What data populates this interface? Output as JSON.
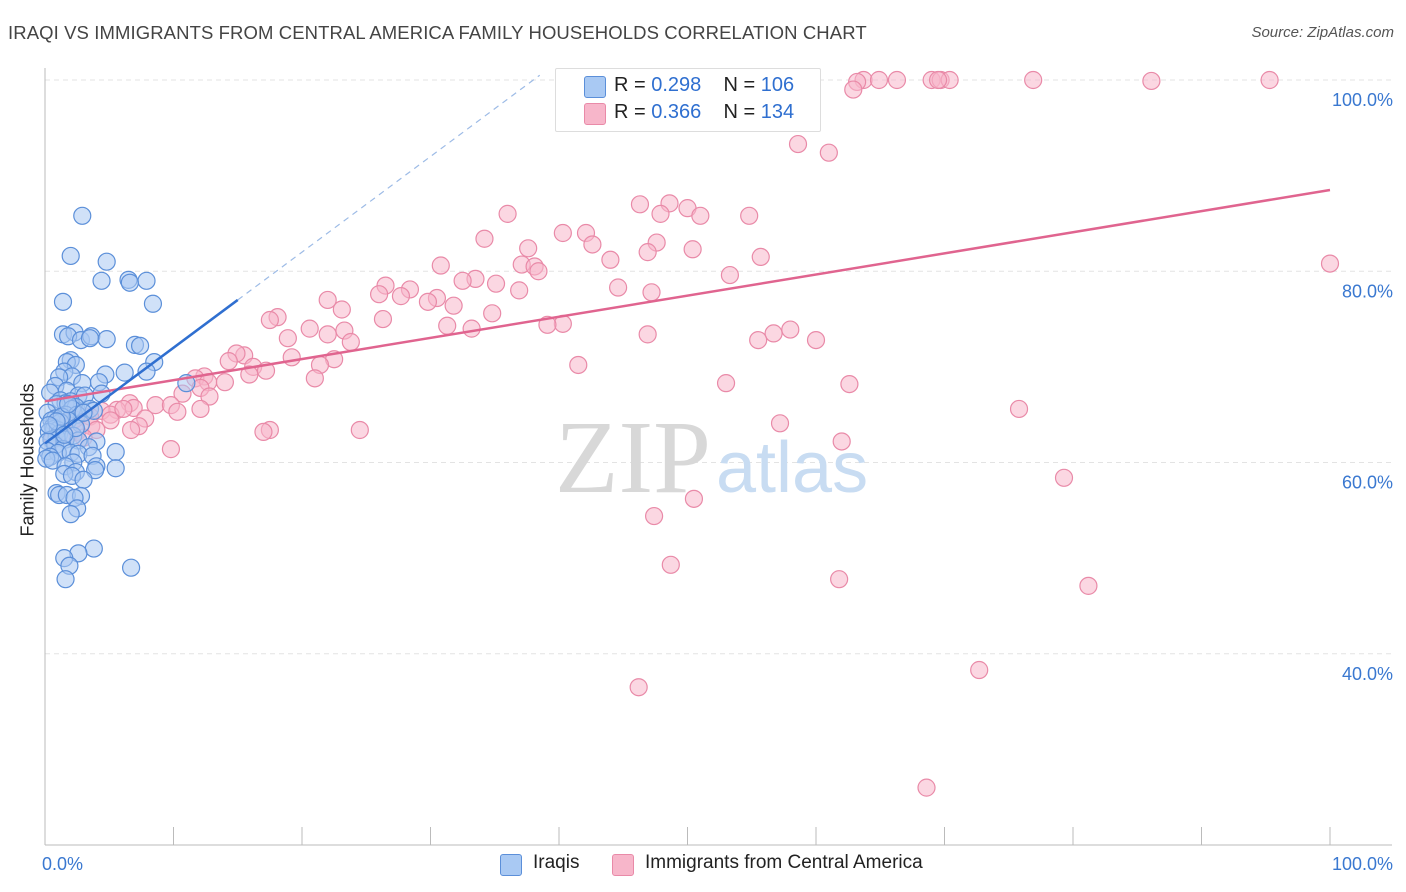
{
  "title": "IRAQI VS IMMIGRANTS FROM CENTRAL AMERICA FAMILY HOUSEHOLDS CORRELATION CHART",
  "source": "Source: ZipAtlas.com",
  "watermark": {
    "zip": "ZIP",
    "atlas": "atlas"
  },
  "legend": {
    "rows": [
      {
        "r_label": "R = ",
        "r_value": "0.298",
        "n_label": "N = ",
        "n_value": "106"
      },
      {
        "r_label": "R = ",
        "r_value": "0.366",
        "n_label": "N = ",
        "n_value": "134"
      }
    ]
  },
  "colors": {
    "iraqis_fill": "#a9c9f3",
    "iraqis_stroke": "#5b8fd9",
    "iraqis_line": "#2f6fd0",
    "central_fill": "#f7b6ca",
    "central_stroke": "#e98aa8",
    "central_line": "#e0648f",
    "tick_label": "#3a78d0",
    "grid": "#e3e3e3"
  },
  "chart_data": {
    "type": "scatter",
    "title": "IRAQI VS IMMIGRANTS FROM CENTRAL AMERICA FAMILY HOUSEHOLDS CORRELATION CHART",
    "xlabel": "",
    "ylabel": "Family Households",
    "xlim": [
      0,
      100
    ],
    "ylim": [
      20,
      102
    ],
    "x_tick_labels": [
      "0.0%",
      "100.0%"
    ],
    "y_ticks": [
      40,
      60,
      80,
      100
    ],
    "y_tick_labels": [
      "40.0%",
      "60.0%",
      "80.0%",
      "100.0%"
    ],
    "grid": true,
    "legend_position": "top-center",
    "series": [
      {
        "name": "Iraqis",
        "r": 0.298,
        "n": 106,
        "trend": {
          "x": [
            0,
            15
          ],
          "y": [
            62.0,
            77.0
          ]
        },
        "trend_extension": {
          "x": [
            15,
            38.5
          ],
          "y": [
            77.0,
            100.5
          ]
        },
        "points": [
          [
            2.9,
            85.8
          ],
          [
            2.0,
            81.6
          ],
          [
            4.8,
            81.0
          ],
          [
            4.4,
            79.0
          ],
          [
            6.5,
            79.1
          ],
          [
            7.9,
            79.0
          ],
          [
            6.6,
            78.8
          ],
          [
            1.4,
            76.8
          ],
          [
            8.4,
            76.6
          ],
          [
            1.4,
            73.4
          ],
          [
            2.3,
            73.6
          ],
          [
            1.8,
            73.2
          ],
          [
            2.8,
            72.8
          ],
          [
            3.6,
            73.2
          ],
          [
            3.5,
            73.0
          ],
          [
            4.8,
            72.9
          ],
          [
            7.0,
            72.3
          ],
          [
            7.4,
            72.2
          ],
          [
            8.5,
            70.5
          ],
          [
            2.0,
            70.7
          ],
          [
            1.7,
            70.5
          ],
          [
            2.4,
            70.2
          ],
          [
            4.7,
            69.2
          ],
          [
            6.2,
            69.4
          ],
          [
            7.9,
            69.5
          ],
          [
            1.5,
            69.5
          ],
          [
            2.1,
            69.0
          ],
          [
            1.1,
            68.9
          ],
          [
            2.9,
            68.3
          ],
          [
            11.0,
            68.3
          ],
          [
            4.2,
            68.4
          ],
          [
            0.8,
            68.0
          ],
          [
            1.7,
            67.5
          ],
          [
            0.4,
            67.3
          ],
          [
            2.6,
            67.0
          ],
          [
            3.1,
            67.0
          ],
          [
            4.4,
            67.2
          ],
          [
            1.2,
            66.5
          ],
          [
            2.0,
            66.4
          ],
          [
            1.6,
            66.2
          ],
          [
            0.9,
            66.1
          ],
          [
            2.4,
            65.8
          ],
          [
            2.1,
            65.6
          ],
          [
            3.5,
            65.6
          ],
          [
            3.8,
            65.4
          ],
          [
            0.2,
            65.2
          ],
          [
            1.6,
            65.0
          ],
          [
            2.5,
            65.0
          ],
          [
            0.8,
            64.6
          ],
          [
            1.8,
            64.4
          ],
          [
            0.5,
            64.4
          ],
          [
            1.2,
            64.2
          ],
          [
            2.8,
            64.0
          ],
          [
            0.6,
            63.7
          ],
          [
            0.7,
            63.5
          ],
          [
            1.0,
            63.4
          ],
          [
            0.3,
            63.2
          ],
          [
            1.1,
            63.0
          ],
          [
            2.2,
            62.8
          ],
          [
            0.9,
            62.6
          ],
          [
            0.5,
            62.4
          ],
          [
            1.6,
            62.4
          ],
          [
            2.6,
            62.3
          ],
          [
            0.2,
            62.2
          ],
          [
            4.0,
            62.2
          ],
          [
            0.8,
            61.8
          ],
          [
            3.4,
            61.6
          ],
          [
            1.4,
            61.4
          ],
          [
            0.2,
            61.2
          ],
          [
            1.0,
            61.0
          ],
          [
            2.0,
            61.0
          ],
          [
            2.6,
            60.9
          ],
          [
            5.5,
            61.1
          ],
          [
            3.7,
            60.7
          ],
          [
            0.4,
            60.6
          ],
          [
            0.1,
            60.4
          ],
          [
            0.6,
            60.2
          ],
          [
            2.2,
            60.0
          ],
          [
            4.0,
            59.6
          ],
          [
            1.6,
            59.6
          ],
          [
            5.5,
            59.4
          ],
          [
            3.9,
            59.2
          ],
          [
            2.4,
            59.0
          ],
          [
            1.5,
            58.8
          ],
          [
            2.1,
            58.6
          ],
          [
            3.0,
            58.2
          ],
          [
            0.9,
            56.8
          ],
          [
            1.1,
            56.6
          ],
          [
            1.7,
            56.6
          ],
          [
            2.8,
            56.5
          ],
          [
            2.3,
            56.3
          ],
          [
            2.5,
            55.2
          ],
          [
            2.0,
            54.6
          ],
          [
            3.8,
            51.0
          ],
          [
            2.6,
            50.5
          ],
          [
            1.5,
            50.0
          ],
          [
            1.9,
            49.2
          ],
          [
            6.7,
            49.0
          ],
          [
            1.6,
            47.8
          ],
          [
            3.0,
            65.2
          ],
          [
            1.3,
            64.8
          ],
          [
            0.9,
            64.3
          ],
          [
            1.8,
            66.1
          ],
          [
            2.4,
            63.6
          ],
          [
            0.3,
            63.9
          ],
          [
            1.5,
            62.9
          ]
        ]
      },
      {
        "name": "Immigrants from Central America",
        "r": 0.366,
        "n": 134,
        "trend": {
          "x": [
            0,
            100
          ],
          "y": [
            66.4,
            88.5
          ]
        },
        "points": [
          [
            63.7,
            100.0
          ],
          [
            64.9,
            100.0
          ],
          [
            66.3,
            100.0
          ],
          [
            69.0,
            100.0
          ],
          [
            69.7,
            100.0
          ],
          [
            70.4,
            100.0
          ],
          [
            69.5,
            100.0
          ],
          [
            76.9,
            100.0
          ],
          [
            95.3,
            100.0
          ],
          [
            86.1,
            99.9
          ],
          [
            63.2,
            99.8
          ],
          [
            62.9,
            99.0
          ],
          [
            47.7,
            97.0
          ],
          [
            42.0,
            95.6
          ],
          [
            58.6,
            93.3
          ],
          [
            61.0,
            92.4
          ],
          [
            48.6,
            87.1
          ],
          [
            46.3,
            87.0
          ],
          [
            50.0,
            86.6
          ],
          [
            47.9,
            86.0
          ],
          [
            36.0,
            86.0
          ],
          [
            51.0,
            85.8
          ],
          [
            54.8,
            85.8
          ],
          [
            40.3,
            84.0
          ],
          [
            42.1,
            84.0
          ],
          [
            34.2,
            83.4
          ],
          [
            47.6,
            83.0
          ],
          [
            42.6,
            82.8
          ],
          [
            37.6,
            82.4
          ],
          [
            50.4,
            82.3
          ],
          [
            46.9,
            82.0
          ],
          [
            55.7,
            81.5
          ],
          [
            44.0,
            81.2
          ],
          [
            37.1,
            80.7
          ],
          [
            38.1,
            80.5
          ],
          [
            30.8,
            80.6
          ],
          [
            38.4,
            80.0
          ],
          [
            53.3,
            79.6
          ],
          [
            100.0,
            80.8
          ],
          [
            33.5,
            79.2
          ],
          [
            32.5,
            79.0
          ],
          [
            35.1,
            78.7
          ],
          [
            26.5,
            78.5
          ],
          [
            44.6,
            78.3
          ],
          [
            28.4,
            78.1
          ],
          [
            36.9,
            78.0
          ],
          [
            26.0,
            77.6
          ],
          [
            27.7,
            77.4
          ],
          [
            47.2,
            77.8
          ],
          [
            30.5,
            77.2
          ],
          [
            29.8,
            76.8
          ],
          [
            22.0,
            77.0
          ],
          [
            31.8,
            76.4
          ],
          [
            23.1,
            76.0
          ],
          [
            18.1,
            75.2
          ],
          [
            26.3,
            75.0
          ],
          [
            34.8,
            75.6
          ],
          [
            40.3,
            74.5
          ],
          [
            17.5,
            74.9
          ],
          [
            31.3,
            74.3
          ],
          [
            20.6,
            74.0
          ],
          [
            33.2,
            74.0
          ],
          [
            39.1,
            74.4
          ],
          [
            58.0,
            73.9
          ],
          [
            56.7,
            73.5
          ],
          [
            46.9,
            73.4
          ],
          [
            23.3,
            73.8
          ],
          [
            22.0,
            73.4
          ],
          [
            18.9,
            73.0
          ],
          [
            55.5,
            72.8
          ],
          [
            60.0,
            72.8
          ],
          [
            23.8,
            72.6
          ],
          [
            15.5,
            71.2
          ],
          [
            14.9,
            71.4
          ],
          [
            19.2,
            71.0
          ],
          [
            22.5,
            70.8
          ],
          [
            14.3,
            70.6
          ],
          [
            21.4,
            70.2
          ],
          [
            41.5,
            70.2
          ],
          [
            16.2,
            70.0
          ],
          [
            17.2,
            69.6
          ],
          [
            15.9,
            69.2
          ],
          [
            12.4,
            69.0
          ],
          [
            11.7,
            68.8
          ],
          [
            21.0,
            68.8
          ],
          [
            12.7,
            68.4
          ],
          [
            14.0,
            68.4
          ],
          [
            53.0,
            68.3
          ],
          [
            62.6,
            68.2
          ],
          [
            12.1,
            67.8
          ],
          [
            10.7,
            67.2
          ],
          [
            12.8,
            66.9
          ],
          [
            6.6,
            66.2
          ],
          [
            8.6,
            66.0
          ],
          [
            9.8,
            66.0
          ],
          [
            12.1,
            65.6
          ],
          [
            6.9,
            65.7
          ],
          [
            5.6,
            65.5
          ],
          [
            4.4,
            65.4
          ],
          [
            10.3,
            65.3
          ],
          [
            5.1,
            65.0
          ],
          [
            3.5,
            64.8
          ],
          [
            7.8,
            64.6
          ],
          [
            75.8,
            65.6
          ],
          [
            5.1,
            64.4
          ],
          [
            3.6,
            63.8
          ],
          [
            7.3,
            63.8
          ],
          [
            1.6,
            64.2
          ],
          [
            4.0,
            63.4
          ],
          [
            17.5,
            63.4
          ],
          [
            6.7,
            63.4
          ],
          [
            2.5,
            63.2
          ],
          [
            1.9,
            63.0
          ],
          [
            3.0,
            62.6
          ],
          [
            0.6,
            62.4
          ],
          [
            62.0,
            62.2
          ],
          [
            57.2,
            64.1
          ],
          [
            24.5,
            63.4
          ],
          [
            9.8,
            61.4
          ],
          [
            1.1,
            63.8
          ],
          [
            17.0,
            63.2
          ],
          [
            79.3,
            58.4
          ],
          [
            47.4,
            54.4
          ],
          [
            50.5,
            56.2
          ],
          [
            48.7,
            49.3
          ],
          [
            61.8,
            47.8
          ],
          [
            81.2,
            47.1
          ],
          [
            72.7,
            38.3
          ],
          [
            46.2,
            36.5
          ],
          [
            68.6,
            26.0
          ],
          [
            6.1,
            65.6
          ],
          [
            2.3,
            64.5
          ]
        ]
      }
    ]
  }
}
